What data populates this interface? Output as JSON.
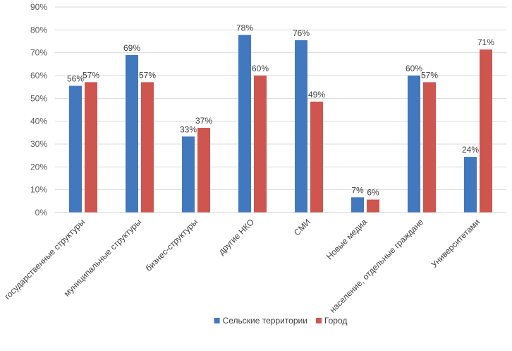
{
  "chart_data": {
    "type": "bar",
    "categories": [
      "государственные структуры",
      "муниципальные структуры",
      "бизнес-структуры",
      "другие НКО",
      "СМИ",
      "Новые медиа",
      "население, отдельные граждане",
      "Университетами"
    ],
    "series": [
      {
        "name": "Сельские территории",
        "color": "#4178BE",
        "values": [
          55.5,
          69,
          33.3,
          77.8,
          75.5,
          6.7,
          60,
          24.4
        ],
        "labels": [
          "56%",
          "69%",
          "33%",
          "78%",
          "76%",
          "7%",
          "60%",
          "24%"
        ]
      },
      {
        "name": "Город",
        "color": "#CF554F",
        "values": [
          57.1,
          57.1,
          37.1,
          60,
          48.6,
          5.7,
          57.1,
          71.4
        ],
        "labels": [
          "57%",
          "57%",
          "37%",
          "60%",
          "49%",
          "6%",
          "57%",
          "71%"
        ]
      }
    ],
    "y_ticks": [
      "0%",
      "10%",
      "20%",
      "30%",
      "40%",
      "50%",
      "60%",
      "70%",
      "80%",
      "90%"
    ],
    "ylim": [
      0,
      90
    ],
    "grid": true,
    "legend_position": "bottom"
  }
}
